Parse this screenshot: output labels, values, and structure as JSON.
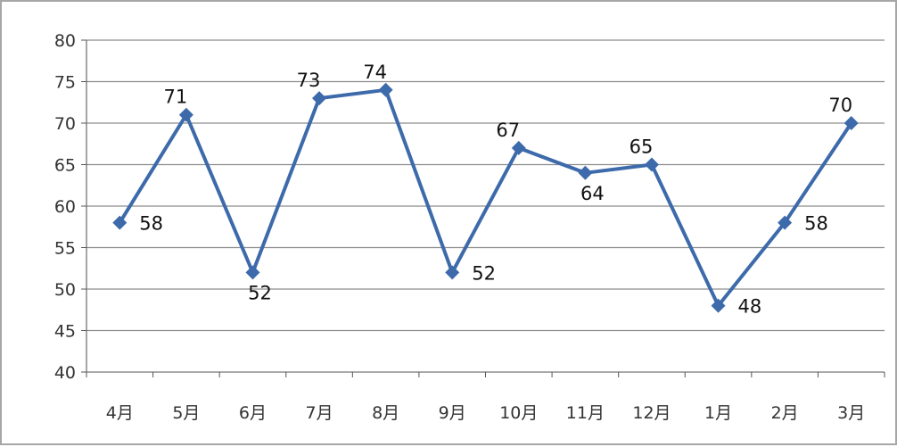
{
  "chart_data": {
    "type": "line",
    "title": "",
    "xlabel": "",
    "ylabel": "",
    "categories": [
      "4月",
      "5月",
      "6月",
      "7月",
      "8月",
      "9月",
      "10月",
      "11月",
      "12月",
      "1月",
      "2月",
      "3月"
    ],
    "series": [
      {
        "values": [
          58,
          71,
          52,
          73,
          74,
          52,
          67,
          64,
          65,
          48,
          58,
          70
        ]
      }
    ],
    "ylim": [
      40,
      80
    ],
    "yticks": [
      40,
      45,
      50,
      55,
      60,
      65,
      70,
      75,
      80
    ],
    "grid": true,
    "legend": "none",
    "colors": {
      "line": "#3d6aaa",
      "marker": "#3d6aaa",
      "grid": "#8c8c8c",
      "frame": "#a6a6a6"
    },
    "marker": "diamond",
    "data_labels": true
  }
}
